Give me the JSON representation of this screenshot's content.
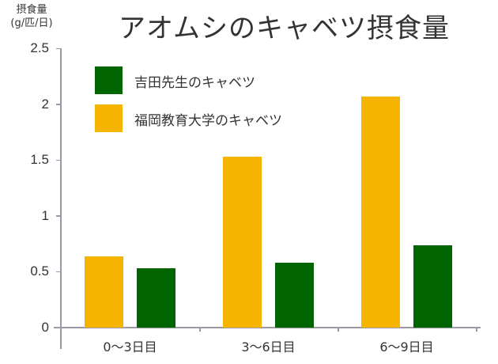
{
  "title": "アオムシのキャベツ摂食量",
  "y_axis_label_line1": "摂食量",
  "y_axis_label_line2": "(g/匹/日)",
  "colors": {
    "yoshida": "#006400",
    "fukuoka": "#F5B400",
    "axis": "#9a9aa6",
    "text": "#333333"
  },
  "legend": [
    {
      "label": "吉田先生のキャベツ",
      "color": "#006400"
    },
    {
      "label": "福岡教育大学のキャベツ",
      "color": "#F5B400"
    }
  ],
  "yticks": [
    "0",
    "0.5",
    "1",
    "1.5",
    "2",
    "2.5"
  ],
  "xticks": [
    "0〜3日目",
    "3〜6日目",
    "6〜9日目"
  ],
  "chart_data": {
    "type": "bar",
    "title": "アオムシのキャベツ摂食量",
    "xlabel": "",
    "ylabel": "摂食量 (g/匹/日)",
    "categories": [
      "0〜3日目",
      "3〜6日目",
      "6〜9日目"
    ],
    "series": [
      {
        "name": "福岡教育大学のキャベツ",
        "color": "#F5B400",
        "values": [
          0.64,
          1.53,
          2.07
        ]
      },
      {
        "name": "吉田先生のキャベツ",
        "color": "#006400",
        "values": [
          0.53,
          0.58,
          0.74
        ]
      }
    ],
    "ylim": [
      0,
      2.5
    ],
    "yticks": [
      0,
      0.5,
      1,
      1.5,
      2,
      2.5
    ],
    "grid": false,
    "legend_position": "upper-left inside"
  }
}
